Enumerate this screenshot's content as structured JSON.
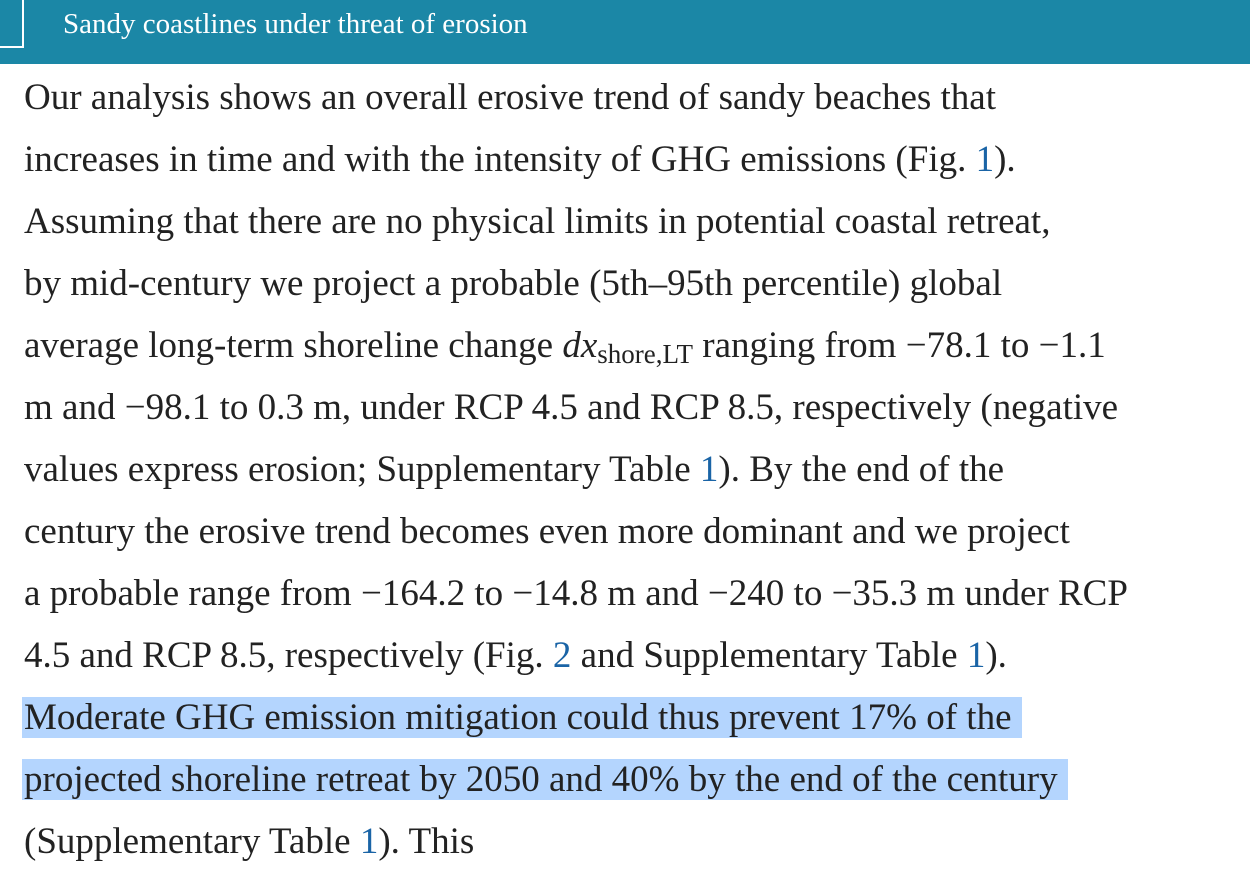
{
  "header": {
    "title": "Sandy coastlines under threat of erosion"
  },
  "paragraph": {
    "lines": [
      [
        "Our analysis shows an overall erosive trend of sandy beaches that"
      ],
      [
        "increases in time and with the intensity of GHG emissions (Fig. ",
        "1",
        ")."
      ],
      [
        "Assuming that there are no physical limits in potential coastal retreat,"
      ],
      [
        "by mid-century we project a probable (5th–95th percentile) global"
      ],
      [
        "average long-term shoreline change ",
        "dx",
        "shore,LT",
        " ranging from −78.1 to −1.1"
      ],
      [
        "m and −98.1 to 0.3 m, under RCP 4.5 and RCP 8.5, respectively (negative"
      ],
      [
        "values express erosion; Supplementary Table ",
        "1",
        "). By the end of the"
      ],
      [
        "century the erosive trend becomes even more dominant and we project"
      ],
      [
        "a probable range from −164.2 to −14.8 m and −240 to −35.3 m under RCP"
      ],
      [
        "4.5 and RCP 8.5, respectively (Fig. ",
        "2",
        " and Supplementary Table ",
        "1",
        ")."
      ],
      [
        "Moderate GHG emission mitigation could thus prevent 17% of the"
      ],
      [
        "projected shoreline retreat by 2050 and 40% by the end of the century"
      ],
      [
        "(Supplementary Table ",
        "1",
        "). This"
      ]
    ]
  }
}
